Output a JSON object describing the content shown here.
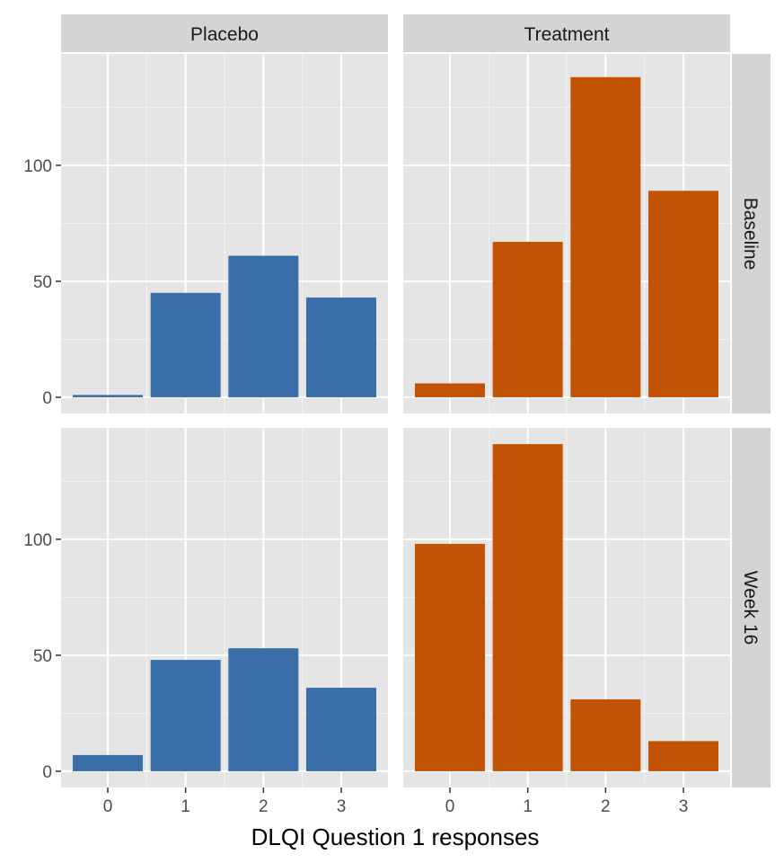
{
  "chart_data": {
    "type": "bar",
    "facet_columns": [
      "Placebo",
      "Treatment"
    ],
    "facet_rows": [
      "Baseline",
      "Week 16"
    ],
    "categories": [
      "0",
      "1",
      "2",
      "3"
    ],
    "xlabel": "DLQI Question 1 responses",
    "ylabel": "",
    "ylim": [
      -7,
      148
    ],
    "xlim": [
      -0.6,
      3.6
    ],
    "y_ticks": [
      0,
      50,
      100
    ],
    "y_minor_ticks": [
      25,
      75,
      125
    ],
    "grid": true,
    "colors": {
      "Placebo": "#3A6EA8",
      "Treatment": "#C25304",
      "panel_bg": "#E5E5E5",
      "strip_bg": "#D4D4D4"
    },
    "panels": [
      {
        "row": "Baseline",
        "col": "Placebo",
        "values": [
          1,
          45,
          61,
          43
        ]
      },
      {
        "row": "Baseline",
        "col": "Treatment",
        "values": [
          6,
          67,
          138,
          89
        ]
      },
      {
        "row": "Week 16",
        "col": "Placebo",
        "values": [
          7,
          48,
          53,
          36
        ]
      },
      {
        "row": "Week 16",
        "col": "Treatment",
        "values": [
          98,
          141,
          31,
          13
        ]
      }
    ]
  }
}
